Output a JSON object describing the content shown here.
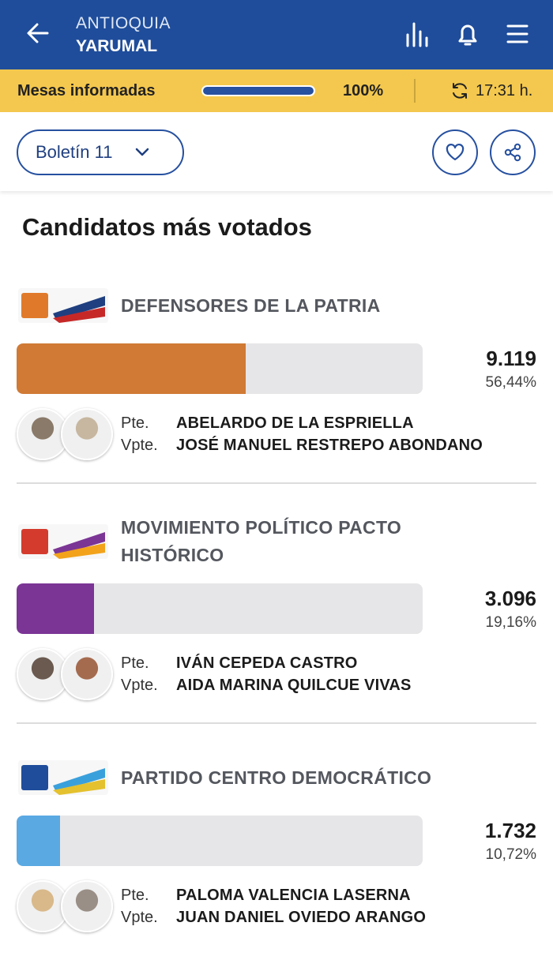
{
  "header": {
    "department": "ANTIOQUIA",
    "municipality": "YARUMAL"
  },
  "status": {
    "label": "Mesas informadas",
    "progress": 100,
    "progress_label": "100%",
    "time": "17:31 h."
  },
  "bulletin": "Boletín 11",
  "section_title": "Candidatos más votados",
  "roles": {
    "president": "Pte.",
    "vice_president": "Vpte."
  },
  "candidates": [
    {
      "party": "DEFENSORES DE LA PATRIA",
      "votes": "9.119",
      "percent": 56.44,
      "percent_label": "56,44%",
      "color": "#d07a35",
      "president": "ABELARDO DE LA ESPRIELLA",
      "vice_president": "JOSÉ MANUEL RESTREPO ABONDANO"
    },
    {
      "party": "MOVIMIENTO POLÍTICO PACTO HISTÓRICO",
      "votes": "3.096",
      "percent": 19.16,
      "percent_label": "19,16%",
      "color": "#7b3595",
      "president": "IVÁN CEPEDA CASTRO",
      "vice_president": "AIDA MARINA QUILCUE VIVAS"
    },
    {
      "party": "PARTIDO CENTRO DEMOCRÁTICO",
      "votes": "1.732",
      "percent": 10.72,
      "percent_label": "10,72%",
      "color": "#5aa9e3",
      "president": "PALOMA VALENCIA LASERNA",
      "vice_president": "JUAN DANIEL OVIEDO ARANGO"
    }
  ]
}
